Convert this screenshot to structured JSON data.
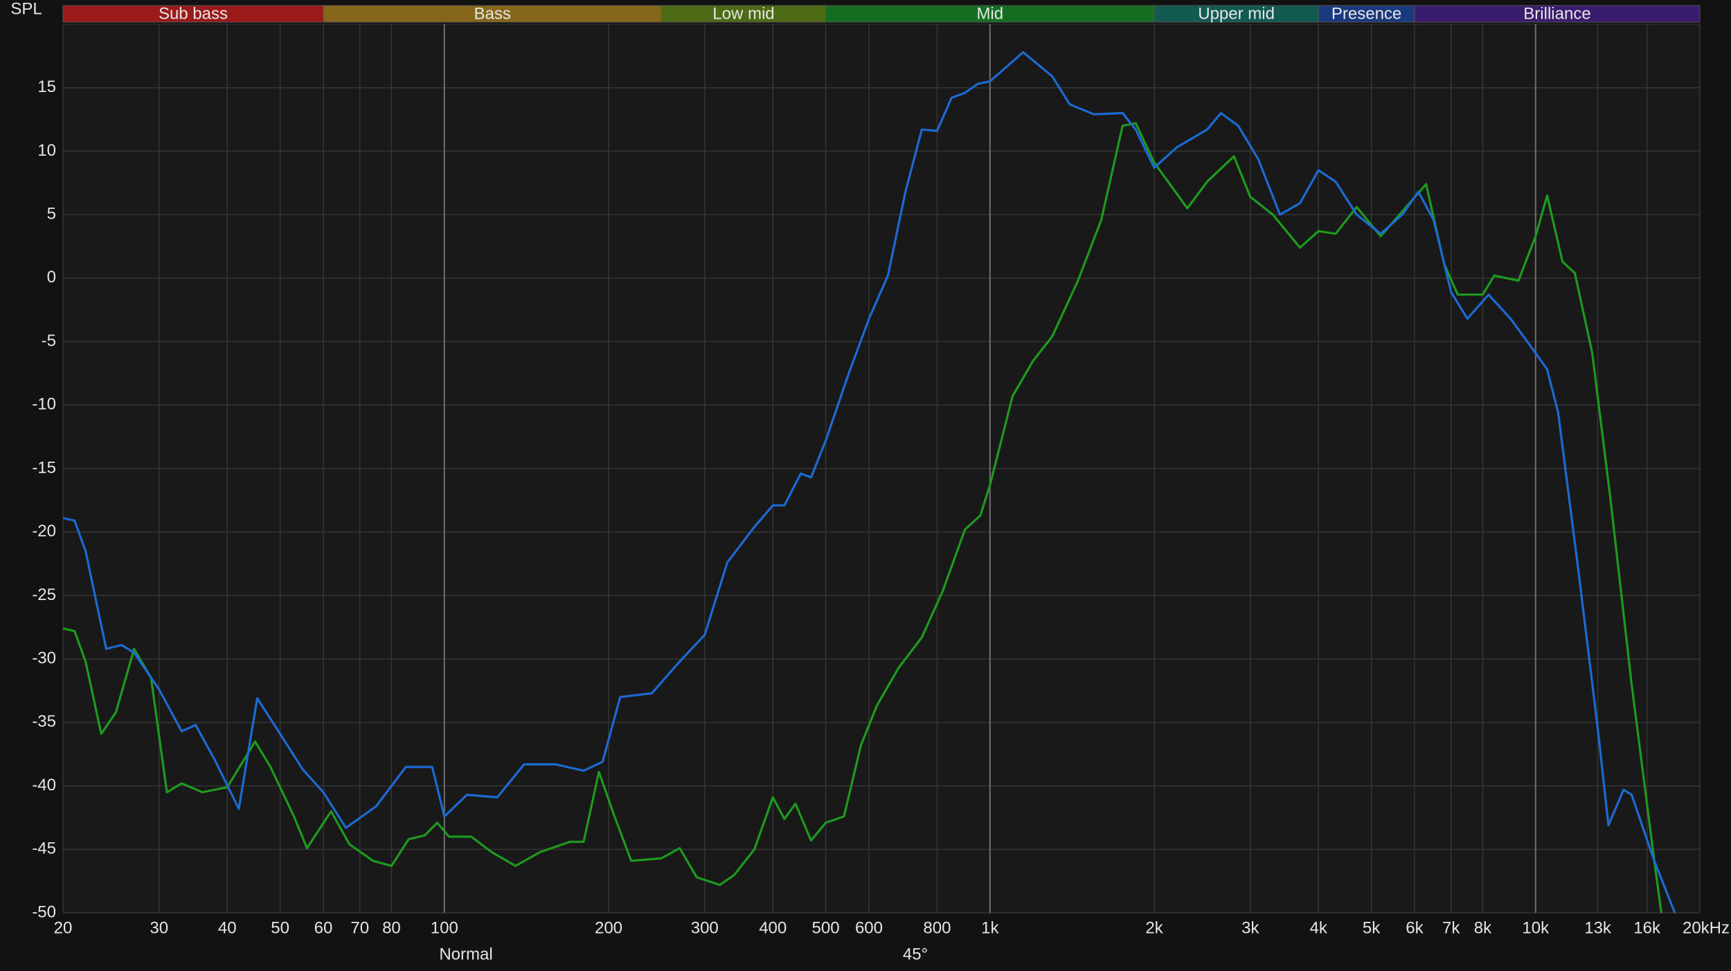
{
  "chart_data": {
    "type": "line",
    "ylabel": "SPL",
    "log_x": true,
    "grid": true,
    "xlim": [
      20,
      20000
    ],
    "ylim": [
      -50,
      20
    ],
    "yticks": [
      -50,
      -45,
      -40,
      -35,
      -30,
      -25,
      -20,
      -15,
      -10,
      -5,
      0,
      5,
      10,
      15
    ],
    "xticks": [
      20,
      30,
      40,
      50,
      60,
      70,
      80,
      100,
      200,
      300,
      400,
      500,
      600,
      800,
      {
        "value": 1000,
        "label": "1k"
      },
      {
        "value": 2000,
        "label": "2k"
      },
      {
        "value": 3000,
        "label": "3k"
      },
      {
        "value": 4000,
        "label": "4k"
      },
      {
        "value": 5000,
        "label": "5k"
      },
      {
        "value": 6000,
        "label": "6k"
      },
      {
        "value": 7000,
        "label": "7k"
      },
      {
        "value": 8000,
        "label": "8k"
      },
      {
        "value": 10000,
        "label": "10k"
      },
      {
        "value": 13000,
        "label": "13k",
        "muted": true
      },
      {
        "value": 16000,
        "label": "16k",
        "muted": true
      },
      {
        "value": 20000,
        "label": "20kHz"
      }
    ],
    "major_xgrid": [
      100,
      1000,
      10000
    ],
    "bands": [
      {
        "label": "Sub bass",
        "start": 20,
        "end": 60,
        "color": "#9c1a1a"
      },
      {
        "label": "Bass",
        "start": 60,
        "end": 250,
        "color": "#86661a"
      },
      {
        "label": "Low mid",
        "start": 250,
        "end": 500,
        "color": "#4d6a14"
      },
      {
        "label": "Mid",
        "start": 500,
        "end": 2000,
        "color": "#146e22"
      },
      {
        "label": "Upper mid",
        "start": 2000,
        "end": 4000,
        "color": "#125a52"
      },
      {
        "label": "Presence",
        "start": 4000,
        "end": 6000,
        "color": "#1a3a7e"
      },
      {
        "label": "Brilliance",
        "start": 6000,
        "end": 20000,
        "color": "#3a1c6e"
      }
    ],
    "series": [
      {
        "name": "Normal",
        "color": "#1e9a1e",
        "x": [
          20,
          21,
          22,
          23.5,
          25,
          27,
          29,
          31,
          33,
          36,
          40,
          45,
          48,
          53,
          56,
          62,
          67,
          74,
          80,
          86,
          92,
          97,
          102,
          112,
          122,
          135,
          150,
          170,
          180,
          192,
          205,
          220,
          250,
          270,
          290,
          320,
          340,
          370,
          400,
          420,
          440,
          470,
          500,
          540,
          580,
          620,
          680,
          750,
          820,
          900,
          960,
          1000,
          1100,
          1200,
          1300,
          1450,
          1600,
          1750,
          1850,
          2000,
          2300,
          2500,
          2800,
          3000,
          3300,
          3700,
          4000,
          4300,
          4700,
          5200,
          6300,
          6800,
          7200,
          8000,
          8400,
          9300,
          10000,
          10500,
          11200,
          11800,
          12700,
          13700,
          15000,
          16500,
          17000
        ],
        "values": [
          -27.6,
          -27.8,
          -30.2,
          -35.9,
          -34.2,
          -29.2,
          -31.5,
          -40.5,
          -39.8,
          -40.5,
          -40.1,
          -36.5,
          -38.5,
          -42.4,
          -44.9,
          -42,
          -44.6,
          -45.9,
          -46.3,
          -44.2,
          -43.9,
          -42.9,
          -44,
          -44,
          -45.2,
          -46.3,
          -45.2,
          -44.4,
          -44.4,
          -38.9,
          -42.4,
          -45.9,
          -45.7,
          -44.9,
          -47.2,
          -47.8,
          -47,
          -45,
          -40.9,
          -42.6,
          -41.4,
          -44.3,
          -42.9,
          -42.4,
          -36.8,
          -33.7,
          -30.7,
          -28.3,
          -24.6,
          -19.8,
          -18.7,
          -16.3,
          -9.3,
          -6.5,
          -4.6,
          -0.2,
          4.6,
          12,
          12.2,
          9.1,
          5.5,
          7.6,
          9.6,
          6.4,
          5,
          2.4,
          3.7,
          3.5,
          5.6,
          3.3,
          7.4,
          1.1,
          -1.3,
          -1.3,
          0.2,
          -0.2,
          3.3,
          6.5,
          1.3,
          0.4,
          -5.9,
          -17.2,
          -32,
          -45.9,
          -50
        ]
      },
      {
        "name": "45°",
        "color": "#1c6ad2",
        "x": [
          20,
          21,
          22,
          24,
          25.6,
          27,
          30,
          33,
          35,
          38,
          42,
          45.4,
          50,
          55,
          60,
          66,
          75,
          85,
          95,
          100,
          110,
          125,
          140,
          160,
          180,
          195,
          210,
          240,
          270,
          300,
          330,
          370,
          400,
          420,
          450,
          470,
          500,
          550,
          600,
          650,
          700,
          750,
          800,
          850,
          900,
          950,
          1000,
          1050,
          1150,
          1300,
          1400,
          1550,
          1750,
          1850,
          2000,
          2200,
          2500,
          2650,
          2850,
          3100,
          3400,
          3700,
          4000,
          4300,
          4700,
          5200,
          5700,
          6100,
          6500,
          7000,
          7500,
          8200,
          9000,
          10000,
          10500,
          11000,
          12000,
          13000,
          13600,
          14500,
          15000,
          16500,
          18000
        ],
        "values": [
          -18.9,
          -19.1,
          -21.5,
          -29.2,
          -28.9,
          -29.5,
          -32.4,
          -35.7,
          -35.2,
          -38,
          -41.8,
          -33.1,
          -35.9,
          -38.7,
          -40.5,
          -43.3,
          -41.6,
          -38.5,
          -38.5,
          -42.4,
          -40.7,
          -40.9,
          -38.3,
          -38.3,
          -38.8,
          -38.1,
          -33,
          -32.7,
          -30.2,
          -28.1,
          -22.4,
          -19.6,
          -17.9,
          -17.9,
          -15.4,
          -15.7,
          -12.8,
          -7.6,
          -3.2,
          0.2,
          6.8,
          11.7,
          11.6,
          14.2,
          14.6,
          15.3,
          15.5,
          16.3,
          17.8,
          15.9,
          13.7,
          12.9,
          13,
          11.7,
          8.7,
          10.3,
          11.7,
          13,
          12,
          9.4,
          5,
          5.9,
          8.5,
          7.6,
          5,
          3.5,
          5,
          6.8,
          4.6,
          -1.1,
          -3.2,
          -1.3,
          -3.2,
          -5.9,
          -7.2,
          -10.6,
          -23.3,
          -35.5,
          -43.1,
          -40.3,
          -40.7,
          -45.9,
          -50
        ]
      }
    ]
  }
}
